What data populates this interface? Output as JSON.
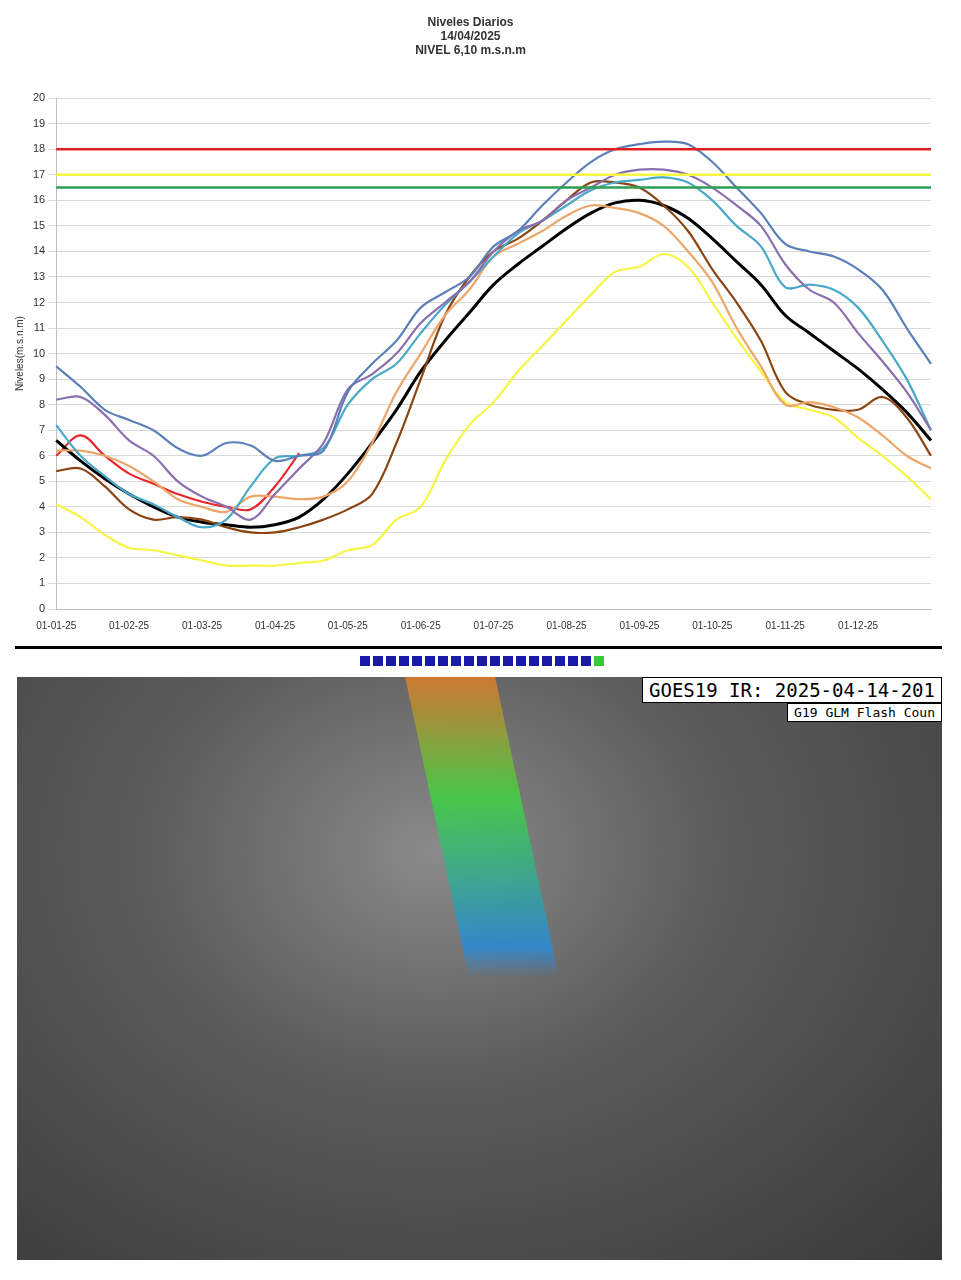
{
  "chart_data": {
    "type": "line",
    "title": [
      "Niveles Diarios",
      "14/04/2025",
      "NIVEL 6,10 m.s.n.m"
    ],
    "y_label": "Niveles(m.s.n.m)",
    "categories": [
      "01-01-25",
      null,
      null,
      "01-02-25",
      null,
      null,
      "01-03-25",
      null,
      null,
      "01-04-25",
      null,
      null,
      "01-05-25",
      null,
      null,
      "01-06-25",
      null,
      null,
      "01-07-25",
      null,
      null,
      "01-08-25",
      null,
      null,
      "01-09-25",
      null,
      null,
      "01-10-25",
      null,
      null,
      "01-11-25",
      null,
      null,
      "01-12-25",
      null,
      null,
      null
    ],
    "series": [
      {
        "color": "#5b7fb8",
        "values": [
          9.5,
          8.7,
          7.8,
          7.4,
          7.0,
          6.3,
          6.0,
          6.5,
          6.4,
          5.8,
          6.0,
          6.2,
          8.5,
          9.6,
          10.5,
          11.8,
          12.4,
          13.0,
          14.2,
          14.8,
          15.8,
          16.7,
          17.5,
          18.0,
          18.2,
          18.3,
          18.2,
          17.5,
          16.5,
          15.5,
          14.3,
          14.0,
          13.8,
          13.3,
          12.5,
          11.0,
          9.6
        ]
      },
      {
        "color": "#8a6fae",
        "values": [
          8.2,
          8.3,
          7.6,
          6.6,
          6.0,
          5.0,
          4.4,
          4.0,
          3.5,
          4.5,
          5.5,
          6.5,
          8.6,
          9.2,
          10.0,
          11.2,
          12.0,
          12.8,
          14.0,
          14.8,
          15.2,
          16.0,
          16.5,
          17.0,
          17.2,
          17.2,
          17.0,
          16.5,
          15.8,
          15.0,
          13.5,
          12.5,
          12.0,
          10.8,
          9.7,
          8.5,
          7.0
        ]
      },
      {
        "color": "#4aa8c8",
        "values": [
          7.2,
          6.0,
          5.2,
          4.5,
          4.1,
          3.6,
          3.2,
          3.5,
          4.8,
          5.9,
          6.0,
          6.3,
          8.0,
          9.0,
          9.6,
          10.8,
          11.9,
          12.8,
          13.8,
          14.7,
          15.2,
          15.8,
          16.4,
          16.7,
          16.8,
          16.9,
          16.7,
          16.0,
          15.0,
          14.2,
          12.6,
          12.7,
          12.5,
          11.8,
          10.5,
          9.0,
          7.0
        ]
      },
      {
        "color": "#eda66a",
        "values": [
          6.2,
          6.2,
          6.0,
          5.6,
          5.0,
          4.3,
          4.0,
          3.8,
          4.4,
          4.4,
          4.3,
          4.4,
          5.0,
          6.5,
          8.5,
          10.0,
          11.5,
          12.5,
          13.8,
          14.3,
          14.8,
          15.4,
          15.8,
          15.7,
          15.5,
          15.0,
          14.0,
          12.8,
          11.0,
          9.5,
          8.0,
          8.1,
          7.9,
          7.5,
          6.8,
          6.0,
          5.5
        ]
      },
      {
        "color": "#8b4513",
        "values": [
          5.4,
          5.5,
          4.8,
          3.9,
          3.5,
          3.6,
          3.5,
          3.2,
          3.0,
          3.0,
          3.2,
          3.5,
          3.9,
          4.5,
          6.5,
          9.0,
          11.5,
          13.0,
          14.0,
          14.5,
          15.2,
          16.0,
          16.7,
          16.7,
          16.5,
          15.8,
          14.8,
          13.3,
          12.0,
          10.5,
          8.5,
          8.0,
          7.8,
          7.8,
          8.3,
          7.5,
          6.0
        ]
      },
      {
        "color": "#000000",
        "values": [
          6.6,
          5.8,
          5.1,
          4.5,
          4.0,
          3.6,
          3.4,
          3.3,
          3.2,
          3.3,
          3.6,
          4.3,
          5.3,
          6.5,
          7.8,
          9.3,
          10.5,
          11.6,
          12.7,
          13.5,
          14.2,
          14.9,
          15.5,
          15.9,
          16.0,
          15.8,
          15.3,
          14.5,
          13.6,
          12.7,
          11.5,
          10.8,
          10.1,
          9.4,
          8.6,
          7.7,
          6.6
        ]
      },
      {
        "color": "#f5f542",
        "values": [
          4.1,
          3.6,
          2.9,
          2.4,
          2.3,
          2.1,
          1.9,
          1.7,
          1.7,
          1.7,
          1.8,
          1.9,
          2.3,
          2.5,
          3.5,
          4.0,
          5.8,
          7.2,
          8.1,
          9.3,
          10.3,
          11.3,
          12.3,
          13.2,
          13.4,
          13.9,
          13.4,
          12.0,
          10.6,
          9.3,
          8.1,
          7.8,
          7.5,
          6.7,
          6.0,
          5.2,
          4.3
        ]
      },
      {
        "color": "#e8262a",
        "values": [
          6.0,
          6.8,
          6.0,
          5.3,
          4.9,
          4.5,
          4.2,
          4.0,
          3.9,
          4.8,
          6.1,
          null,
          null,
          null,
          null,
          null,
          null,
          null,
          null,
          null,
          null,
          null,
          null,
          null,
          null,
          null,
          null,
          null,
          null,
          null,
          null,
          null,
          null,
          null,
          null,
          null,
          null
        ]
      }
    ],
    "hlines": [
      {
        "value": 18,
        "color": "#e02020"
      },
      {
        "value": 17,
        "color": "#f5f542"
      },
      {
        "value": 16.5,
        "color": "#2e9e55"
      }
    ],
    "ylim": [
      0,
      20
    ],
    "yticks": [
      0,
      1,
      2,
      3,
      4,
      5,
      6,
      7,
      8,
      9,
      10,
      11,
      12,
      13,
      14,
      15,
      16,
      17,
      18,
      19,
      20
    ],
    "grid": true
  },
  "image": {
    "title": "GOES19 IR: 2025-04-14-201",
    "subtitle": "G19 GLM Flash Coun"
  }
}
